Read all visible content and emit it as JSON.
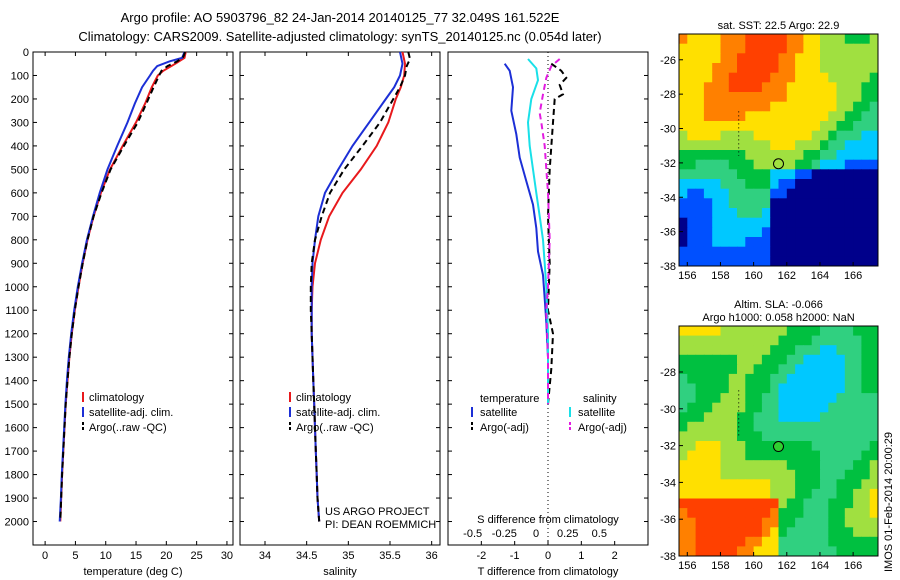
{
  "header": {
    "line1": "Argo profile: AO 5903796_82 24-Jan-2014 20140125_77 32.049S 161.522E",
    "line2": "Climatology: CARS2009. Satellite-adjusted climatology: synTS_20140125.nc (0.054d later)"
  },
  "chart_data": [
    {
      "type": "line",
      "xlabel": "temperature (deg C)",
      "ylabel": "",
      "xlim": [
        -2,
        31
      ],
      "ylim": [
        2100,
        0
      ],
      "x_ticks": [
        "0",
        "5",
        "10",
        "15",
        "20",
        "25",
        "30"
      ],
      "y_ticks": [
        "0",
        "100",
        "200",
        "300",
        "400",
        "500",
        "600",
        "700",
        "800",
        "900",
        "1000",
        "1100",
        "1200",
        "1300",
        "1400",
        "1500",
        "1600",
        "1700",
        "1800",
        "1900",
        "2000"
      ],
      "legend": [
        "climatology",
        "satellite-adj. clim.",
        "Argo(..raw -QC)"
      ],
      "legend_position": "center-right",
      "grid": false,
      "series": [
        {
          "name": "climatology",
          "color": "#e8191c",
          "dash": "solid",
          "points": [
            [
              23.2,
              0
            ],
            [
              23.0,
              25
            ],
            [
              21.5,
              50
            ],
            [
              19.5,
              80
            ],
            [
              18.6,
              100
            ],
            [
              17.6,
              150
            ],
            [
              16.5,
              220
            ],
            [
              15.0,
              300
            ],
            [
              12.8,
              400
            ],
            [
              10.7,
              500
            ],
            [
              9.2,
              600
            ],
            [
              8.0,
              700
            ],
            [
              7.0,
              800
            ],
            [
              6.2,
              900
            ],
            [
              5.5,
              1000
            ],
            [
              4.9,
              1100
            ],
            [
              4.4,
              1200
            ],
            [
              4.0,
              1300
            ],
            [
              3.7,
              1400
            ],
            [
              3.4,
              1500
            ],
            [
              3.2,
              1600
            ],
            [
              3.0,
              1700
            ],
            [
              2.8,
              1800
            ],
            [
              2.65,
              1900
            ],
            [
              2.5,
              2000
            ]
          ]
        },
        {
          "name": "satellite-adj. clim.",
          "color": "#1c2fd6",
          "dash": "solid",
          "points": [
            [
              23.0,
              0
            ],
            [
              22.6,
              25
            ],
            [
              20.5,
              40
            ],
            [
              18.5,
              60
            ],
            [
              17.8,
              80
            ],
            [
              17.3,
              100
            ],
            [
              16.0,
              150
            ],
            [
              14.8,
              220
            ],
            [
              13.6,
              300
            ],
            [
              11.9,
              400
            ],
            [
              10.3,
              500
            ],
            [
              9.0,
              600
            ],
            [
              7.9,
              700
            ],
            [
              6.9,
              800
            ],
            [
              6.1,
              900
            ],
            [
              5.4,
              1000
            ],
            [
              4.8,
              1100
            ],
            [
              4.3,
              1200
            ],
            [
              3.9,
              1300
            ],
            [
              3.6,
              1400
            ],
            [
              3.35,
              1500
            ],
            [
              3.15,
              1600
            ],
            [
              2.95,
              1700
            ],
            [
              2.75,
              1800
            ],
            [
              2.6,
              1900
            ],
            [
              2.4,
              2000
            ]
          ]
        },
        {
          "name": "Argo(..raw -QC)",
          "color": "#000000",
          "dash": "dashed",
          "points": [
            [
              23.1,
              0
            ],
            [
              22.8,
              20
            ],
            [
              21.8,
              40
            ],
            [
              20.2,
              60
            ],
            [
              19.2,
              80
            ],
            [
              18.8,
              100
            ],
            [
              17.9,
              150
            ],
            [
              16.7,
              220
            ],
            [
              15.3,
              300
            ],
            [
              13.0,
              400
            ],
            [
              10.8,
              500
            ],
            [
              9.3,
              600
            ],
            [
              8.0,
              700
            ],
            [
              7.0,
              800
            ],
            [
              6.2,
              900
            ],
            [
              5.5,
              1000
            ],
            [
              4.9,
              1100
            ],
            [
              4.4,
              1200
            ],
            [
              4.0,
              1300
            ],
            [
              3.7,
              1400
            ],
            [
              3.4,
              1500
            ],
            [
              3.2,
              1600
            ],
            [
              3.0,
              1700
            ],
            [
              2.8,
              1800
            ],
            [
              2.65,
              1900
            ],
            [
              2.5,
              2000
            ]
          ]
        }
      ]
    },
    {
      "type": "line",
      "xlabel": "salinity",
      "xlim": [
        33.7,
        36.1
      ],
      "ylim": [
        2100,
        0
      ],
      "x_ticks": [
        "34",
        "34.5",
        "35",
        "35.5",
        "36"
      ],
      "legend": [
        "climatology",
        "satellite-adj. clim.",
        "Argo(..raw -QC)"
      ],
      "legend_position": "center-right",
      "annotation": [
        "US ARGO PROJECT",
        "PI: DEAN ROEMMICH"
      ],
      "series": [
        {
          "name": "climatology",
          "color": "#e8191c",
          "dash": "solid",
          "points": [
            [
              35.65,
              0
            ],
            [
              35.68,
              50
            ],
            [
              35.67,
              100
            ],
            [
              35.63,
              150
            ],
            [
              35.57,
              200
            ],
            [
              35.48,
              300
            ],
            [
              35.34,
              400
            ],
            [
              35.15,
              500
            ],
            [
              34.93,
              600
            ],
            [
              34.77,
              700
            ],
            [
              34.67,
              800
            ],
            [
              34.6,
              900
            ],
            [
              34.57,
              1000
            ],
            [
              34.56,
              1100
            ],
            [
              34.56,
              1200
            ],
            [
              34.57,
              1300
            ],
            [
              34.58,
              1400
            ],
            [
              34.59,
              1500
            ],
            [
              34.6,
              1600
            ],
            [
              34.61,
              1700
            ],
            [
              34.62,
              1800
            ],
            [
              34.63,
              1900
            ],
            [
              34.65,
              2000
            ]
          ]
        },
        {
          "name": "satellite-adj. clim.",
          "color": "#1c2fd6",
          "dash": "solid",
          "points": [
            [
              35.62,
              0
            ],
            [
              35.65,
              50
            ],
            [
              35.62,
              100
            ],
            [
              35.55,
              150
            ],
            [
              35.45,
              200
            ],
            [
              35.25,
              300
            ],
            [
              35.05,
              400
            ],
            [
              34.88,
              500
            ],
            [
              34.72,
              600
            ],
            [
              34.64,
              700
            ],
            [
              34.6,
              800
            ],
            [
              34.57,
              900
            ],
            [
              34.56,
              1000
            ],
            [
              34.56,
              1100
            ],
            [
              34.56,
              1200
            ],
            [
              34.57,
              1300
            ],
            [
              34.58,
              1400
            ],
            [
              34.59,
              1500
            ],
            [
              34.6,
              1600
            ],
            [
              34.61,
              1700
            ],
            [
              34.62,
              1800
            ],
            [
              34.63,
              1900
            ],
            [
              34.65,
              2000
            ]
          ]
        },
        {
          "name": "Argo(..raw -QC)",
          "color": "#000000",
          "dash": "dashed",
          "points": [
            [
              35.72,
              0
            ],
            [
              35.74,
              30
            ],
            [
              35.7,
              60
            ],
            [
              35.68,
              100
            ],
            [
              35.62,
              150
            ],
            [
              35.54,
              200
            ],
            [
              35.38,
              300
            ],
            [
              35.17,
              400
            ],
            [
              34.95,
              500
            ],
            [
              34.78,
              600
            ],
            [
              34.68,
              700
            ],
            [
              34.6,
              800
            ],
            [
              34.56,
              900
            ],
            [
              34.55,
              1000
            ],
            [
              34.55,
              1100
            ],
            [
              34.56,
              1200
            ],
            [
              34.57,
              1300
            ],
            [
              34.58,
              1400
            ],
            [
              34.59,
              1500
            ],
            [
              34.6,
              1600
            ],
            [
              34.61,
              1700
            ],
            [
              34.62,
              1800
            ],
            [
              34.63,
              1900
            ],
            [
              34.65,
              2000
            ]
          ]
        }
      ]
    },
    {
      "type": "line",
      "xlabel": "T difference from climatology",
      "top_xlabel": "S difference from climatology",
      "xlim": [
        -3,
        3
      ],
      "ylim": [
        2100,
        0
      ],
      "x_ticks": [
        "-2",
        "-1",
        "0",
        "1",
        "2"
      ],
      "s_ticks": [
        "-0.5",
        "-0.25",
        "0",
        "0.25",
        "0.5"
      ],
      "legend_left_title": "temperature",
      "legend_right_title": "salinity",
      "legend_left": [
        "satellite",
        "Argo(-adj)"
      ],
      "legend_right": [
        "satellite",
        "Argo(-adj)"
      ],
      "series": [
        {
          "name": "satellite",
          "group": "temperature",
          "color": "#1c2fd6",
          "dash": "solid",
          "points": [
            [
              -1.3,
              50
            ],
            [
              -1.15,
              80
            ],
            [
              -1.05,
              150
            ],
            [
              -1.1,
              250
            ],
            [
              -0.95,
              350
            ],
            [
              -0.85,
              450
            ],
            [
              -0.65,
              550
            ],
            [
              -0.45,
              650
            ],
            [
              -0.35,
              750
            ],
            [
              -0.3,
              850
            ],
            [
              -0.15,
              950
            ],
            [
              -0.1,
              1050
            ],
            [
              -0.05,
              1150
            ],
            [
              0.0,
              1300
            ],
            [
              0.0,
              1500
            ]
          ]
        },
        {
          "name": "Argo(-adj)",
          "group": "temperature",
          "color": "#000000",
          "dash": "dashed",
          "points": [
            [
              0.1,
              50
            ],
            [
              0.4,
              80
            ],
            [
              0.55,
              110
            ],
            [
              0.35,
              140
            ],
            [
              0.45,
              180
            ],
            [
              0.2,
              200
            ],
            [
              0.15,
              300
            ],
            [
              0.05,
              500
            ],
            [
              0.0,
              700
            ],
            [
              0.05,
              900
            ],
            [
              0.0,
              1100
            ],
            [
              0.15,
              1200
            ],
            [
              0.1,
              1350
            ],
            [
              0.0,
              1500
            ]
          ]
        },
        {
          "name": "satellite",
          "group": "salinity",
          "color": "#19e0e8",
          "dash": "solid",
          "points": [
            [
              -0.6,
              30
            ],
            [
              -0.35,
              70
            ],
            [
              -0.3,
              120
            ],
            [
              -0.5,
              200
            ],
            [
              -0.6,
              300
            ],
            [
              -0.55,
              400
            ],
            [
              -0.45,
              500
            ],
            [
              -0.35,
              600
            ],
            [
              -0.25,
              700
            ],
            [
              -0.15,
              800
            ],
            [
              -0.1,
              900
            ],
            [
              -0.05,
              1000
            ],
            [
              0.0,
              1200
            ],
            [
              0.0,
              1500
            ]
          ]
        },
        {
          "name": "Argo(-adj)",
          "group": "salinity",
          "color": "#e21ce0",
          "dash": "dashed",
          "points": [
            [
              0.35,
              30
            ],
            [
              0.1,
              60
            ],
            [
              -0.05,
              110
            ],
            [
              -0.15,
              180
            ],
            [
              -0.25,
              260
            ],
            [
              -0.2,
              300
            ],
            [
              -0.1,
              400
            ],
            [
              0.0,
              600
            ],
            [
              0.05,
              800
            ],
            [
              0.0,
              1000
            ],
            [
              -0.05,
              1100
            ],
            [
              0.0,
              1300
            ],
            [
              0.0,
              1500
            ]
          ]
        }
      ]
    },
    {
      "type": "heatmap",
      "title": "sat. SST: 22.5 Argo: 22.9",
      "x_ticks": [
        "156",
        "158",
        "160",
        "162",
        "164",
        "166"
      ],
      "y_ticks": [
        "-26",
        "-28",
        "-30",
        "-32",
        "-34",
        "-36",
        "-38"
      ],
      "xlim": [
        155.5,
        167.5
      ],
      "ylim": [
        -38,
        -24.5
      ],
      "marker": [
        161.5,
        -32.05
      ],
      "colormap": [
        "#00008b",
        "#0050ff",
        "#00c8ff",
        "#30d080",
        "#00c040",
        "#a0e040",
        "#ffe000",
        "#ff8000",
        "#ff4000"
      ]
    },
    {
      "type": "heatmap",
      "title": "Altim. SLA: -0.066",
      "subtitle": "Argo h1000: 0.058 h2000: NaN",
      "x_ticks": [
        "156",
        "158",
        "160",
        "162",
        "164",
        "166"
      ],
      "y_ticks": [
        "-28",
        "-30",
        "-32",
        "-34",
        "-36",
        "-38"
      ],
      "xlim": [
        155.5,
        167.5
      ],
      "ylim": [
        -38,
        -25.5
      ],
      "marker": [
        161.5,
        -32.05
      ],
      "colormap": [
        "#0050ff",
        "#00c8ff",
        "#30d080",
        "#00c040",
        "#a0e040",
        "#ffe000",
        "#ff8000",
        "#ff4000"
      ]
    }
  ],
  "footer_side": "IMOS 01-Feb-2014 20:00:29"
}
